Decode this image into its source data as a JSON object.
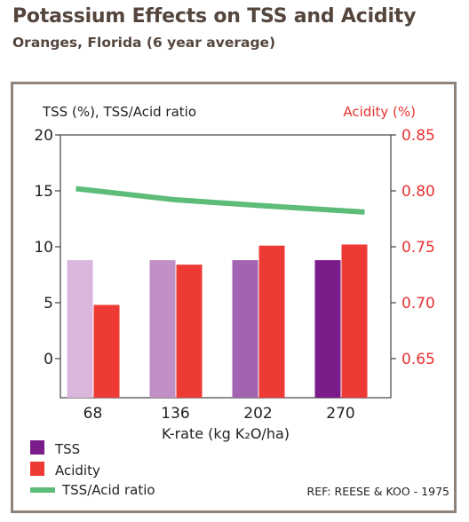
{
  "header": {
    "title": "Potassium Effects on TSS and Acidity",
    "subtitle": "Oranges, Florida (6 year average)"
  },
  "reference": "REF: REESE & KOO - 1975",
  "colors": {
    "acidity_axis": "#e8322f",
    "text": "#222222",
    "title": "#55463d",
    "frame": "#8f8279"
  },
  "chart_data": {
    "type": "bar",
    "categories": [
      "68",
      "136",
      "202",
      "270"
    ],
    "xlabel": "K-rate (kg K₂O/ha)",
    "ylabel_left": "TSS (%), TSS/Acid ratio",
    "ylabel_right": "Acidity (%)",
    "ylim_left": [
      -3.5,
      20
    ],
    "ylim_right": [
      0.615,
      0.85
    ],
    "yticks_left": [
      "20",
      "15",
      "10",
      "5",
      "0"
    ],
    "yticks_right": [
      "0.85",
      "0.80",
      "0.75",
      "0.70",
      "0.65"
    ],
    "series": [
      {
        "name": "TSS",
        "axis": "left",
        "values": [
          8.8,
          8.8,
          8.8,
          8.8
        ],
        "colors": [
          "#dbb6dc",
          "#c18ec6",
          "#a263b0",
          "#7a1c8a"
        ]
      },
      {
        "name": "Acidity",
        "axis": "right",
        "values": [
          0.698,
          0.734,
          0.751,
          0.752
        ],
        "color": "#ee3a34"
      },
      {
        "name": "TSS/Acid ratio",
        "type": "line",
        "axis": "left",
        "values": [
          15.2,
          14.2,
          13.7,
          13.1
        ],
        "color": "#5cbc78"
      }
    ],
    "legend_position": "bottom-left",
    "grid": false
  }
}
